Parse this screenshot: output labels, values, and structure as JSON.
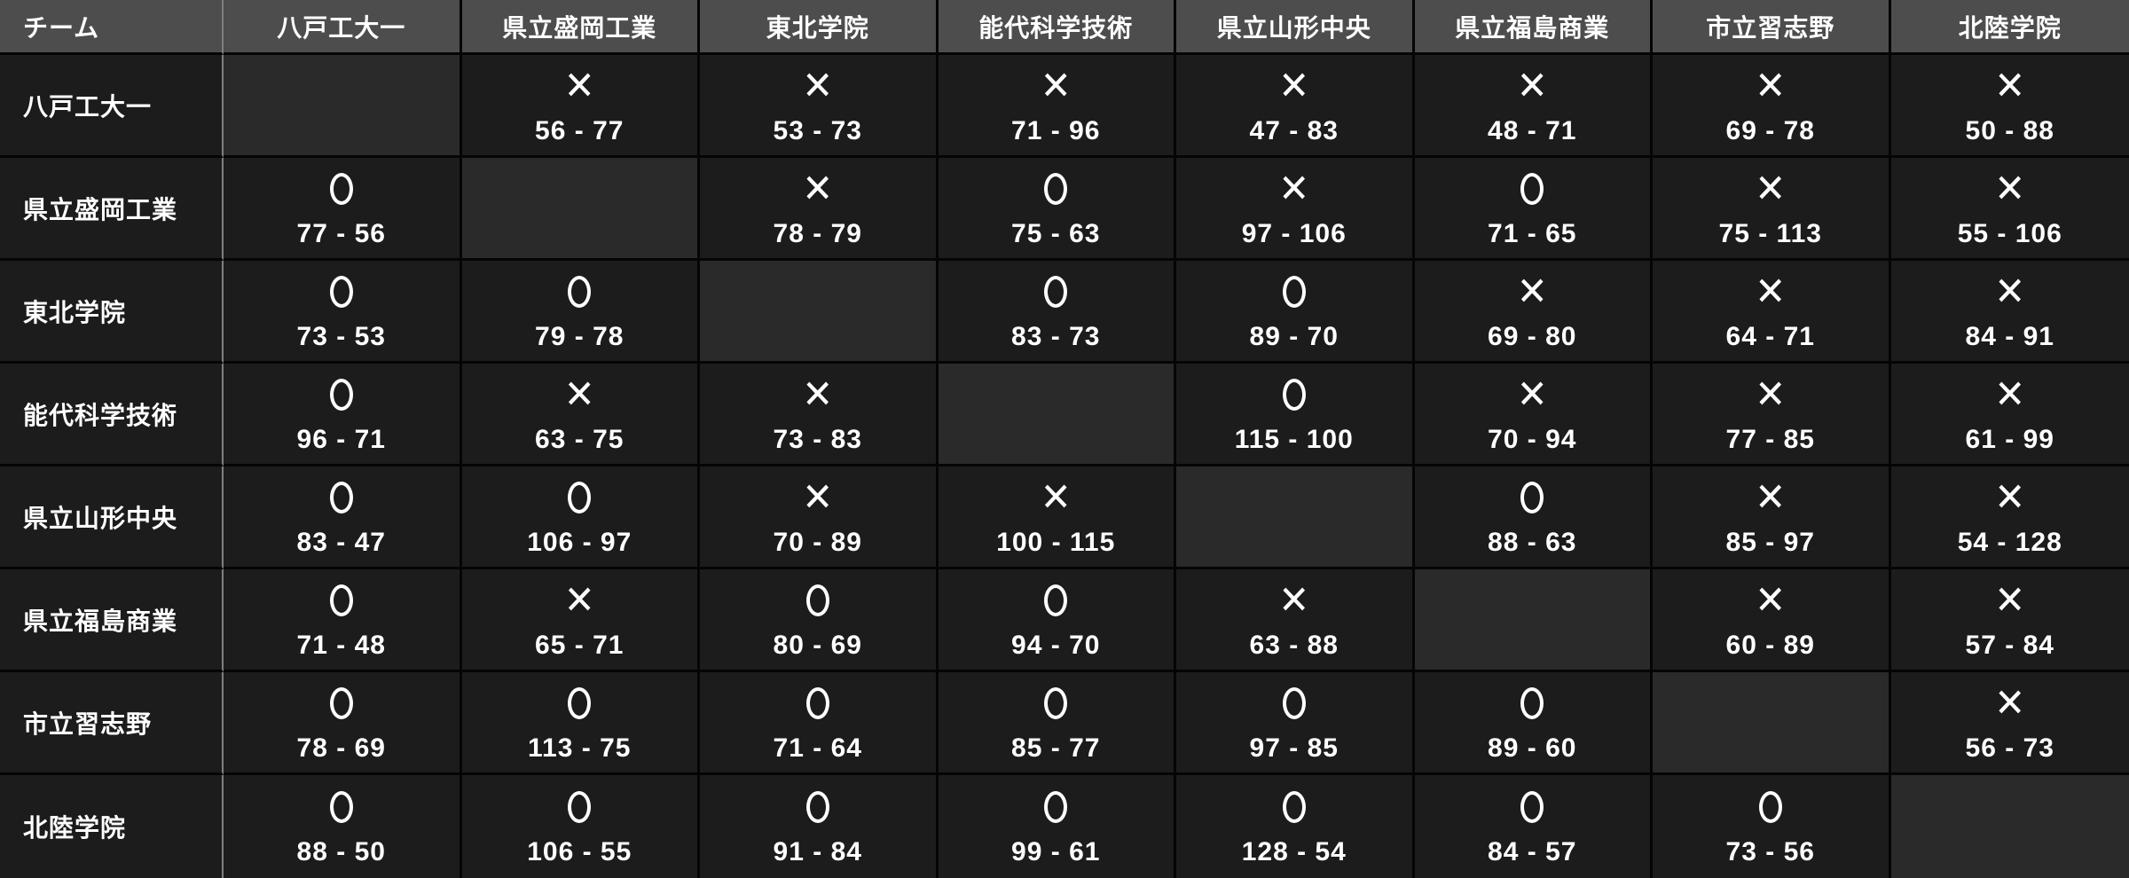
{
  "colors": {
    "background": "#000000",
    "header_bg": "#4d4d4d",
    "cell_bg": "#1c1c1c",
    "diagonal_bg": "#2a2a2a",
    "grid_line": "#050505",
    "first_col_divider": "#7f7f7f",
    "text": "#ffffff"
  },
  "chart_data": {
    "type": "table",
    "description_visible_structure": "round-robin win/loss cross table",
    "corner_header": "チーム",
    "teams": [
      "八戸工大一",
      "県立盛岡工業",
      "東北学院",
      "能代科学技術",
      "県立山形中央",
      "県立福島商業",
      "市立習志野",
      "北陸学院"
    ],
    "win_mark": "○",
    "loss_mark": "✕",
    "results": [
      [
        null,
        {
          "mark": "✕",
          "score": "56 - 77"
        },
        {
          "mark": "✕",
          "score": "53 - 73"
        },
        {
          "mark": "✕",
          "score": "71 - 96"
        },
        {
          "mark": "✕",
          "score": "47 - 83"
        },
        {
          "mark": "✕",
          "score": "48 - 71"
        },
        {
          "mark": "✕",
          "score": "69 - 78"
        },
        {
          "mark": "✕",
          "score": "50 - 88"
        }
      ],
      [
        {
          "mark": "○",
          "score": "77 - 56"
        },
        null,
        {
          "mark": "✕",
          "score": "78 - 79"
        },
        {
          "mark": "○",
          "score": "75 - 63"
        },
        {
          "mark": "✕",
          "score": "97 - 106"
        },
        {
          "mark": "○",
          "score": "71 - 65"
        },
        {
          "mark": "✕",
          "score": "75 - 113"
        },
        {
          "mark": "✕",
          "score": "55 - 106"
        }
      ],
      [
        {
          "mark": "○",
          "score": "73 - 53"
        },
        {
          "mark": "○",
          "score": "79 - 78"
        },
        null,
        {
          "mark": "○",
          "score": "83 - 73"
        },
        {
          "mark": "○",
          "score": "89 - 70"
        },
        {
          "mark": "✕",
          "score": "69 - 80"
        },
        {
          "mark": "✕",
          "score": "64 - 71"
        },
        {
          "mark": "✕",
          "score": "84 - 91"
        }
      ],
      [
        {
          "mark": "○",
          "score": "96 - 71"
        },
        {
          "mark": "✕",
          "score": "63 - 75"
        },
        {
          "mark": "✕",
          "score": "73 - 83"
        },
        null,
        {
          "mark": "○",
          "score": "115 - 100"
        },
        {
          "mark": "✕",
          "score": "70 - 94"
        },
        {
          "mark": "✕",
          "score": "77 - 85"
        },
        {
          "mark": "✕",
          "score": "61 - 99"
        }
      ],
      [
        {
          "mark": "○",
          "score": "83 - 47"
        },
        {
          "mark": "○",
          "score": "106 - 97"
        },
        {
          "mark": "✕",
          "score": "70 - 89"
        },
        {
          "mark": "✕",
          "score": "100 - 115"
        },
        null,
        {
          "mark": "○",
          "score": "88 - 63"
        },
        {
          "mark": "✕",
          "score": "85 - 97"
        },
        {
          "mark": "✕",
          "score": "54 - 128"
        }
      ],
      [
        {
          "mark": "○",
          "score": "71 - 48"
        },
        {
          "mark": "✕",
          "score": "65 - 71"
        },
        {
          "mark": "○",
          "score": "80 - 69"
        },
        {
          "mark": "○",
          "score": "94 - 70"
        },
        {
          "mark": "✕",
          "score": "63 - 88"
        },
        null,
        {
          "mark": "✕",
          "score": "60 - 89"
        },
        {
          "mark": "✕",
          "score": "57 - 84"
        }
      ],
      [
        {
          "mark": "○",
          "score": "78 - 69"
        },
        {
          "mark": "○",
          "score": "113 - 75"
        },
        {
          "mark": "○",
          "score": "71 - 64"
        },
        {
          "mark": "○",
          "score": "85 - 77"
        },
        {
          "mark": "○",
          "score": "97 - 85"
        },
        {
          "mark": "○",
          "score": "89 - 60"
        },
        null,
        {
          "mark": "✕",
          "score": "56 - 73"
        }
      ],
      [
        {
          "mark": "○",
          "score": "88 - 50"
        },
        {
          "mark": "○",
          "score": "106 - 55"
        },
        {
          "mark": "○",
          "score": "91 - 84"
        },
        {
          "mark": "○",
          "score": "99 - 61"
        },
        {
          "mark": "○",
          "score": "128 - 54"
        },
        {
          "mark": "○",
          "score": "84 - 57"
        },
        {
          "mark": "○",
          "score": "73 - 56"
        },
        null
      ]
    ]
  }
}
